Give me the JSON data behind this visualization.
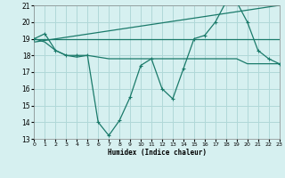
{
  "line1_x": [
    0,
    1,
    2,
    3,
    4,
    5,
    6,
    7,
    8,
    9,
    10,
    11,
    12,
    13,
    14,
    15,
    16,
    17,
    18,
    19,
    20,
    21,
    22,
    23
  ],
  "line1_y": [
    19.0,
    19.3,
    18.3,
    18.0,
    18.0,
    18.0,
    14.0,
    13.2,
    14.1,
    15.5,
    17.4,
    17.8,
    16.0,
    15.4,
    17.2,
    19.0,
    19.2,
    20.0,
    21.2,
    21.2,
    20.0,
    18.3,
    17.8,
    17.5
  ],
  "line2_x": [
    0,
    1,
    2,
    3,
    4,
    5,
    6,
    7,
    8,
    9,
    10,
    11,
    12,
    13,
    14,
    15,
    16,
    17,
    18,
    19,
    20,
    21,
    22,
    23
  ],
  "line2_y": [
    19.0,
    18.8,
    18.3,
    18.0,
    17.9,
    18.0,
    17.9,
    17.8,
    17.8,
    17.8,
    17.8,
    17.8,
    17.8,
    17.8,
    17.8,
    17.8,
    17.8,
    17.8,
    17.8,
    17.8,
    17.5,
    17.5,
    17.5,
    17.5
  ],
  "trend1_x": [
    0,
    23
  ],
  "trend1_y": [
    19.0,
    19.0
  ],
  "trend2_x": [
    0,
    23
  ],
  "trend2_y": [
    18.8,
    21.0
  ],
  "color": "#1a7a6a",
  "bg_color": "#d6f0f0",
  "grid_color": "#b0d8d8",
  "xlabel": "Humidex (Indice chaleur)",
  "ylim": [
    13,
    21
  ],
  "xlim": [
    0,
    23
  ],
  "yticks": [
    13,
    14,
    15,
    16,
    17,
    18,
    19,
    20,
    21
  ],
  "xticks": [
    0,
    1,
    2,
    3,
    4,
    5,
    6,
    7,
    8,
    9,
    10,
    11,
    12,
    13,
    14,
    15,
    16,
    17,
    18,
    19,
    20,
    21,
    22,
    23
  ]
}
